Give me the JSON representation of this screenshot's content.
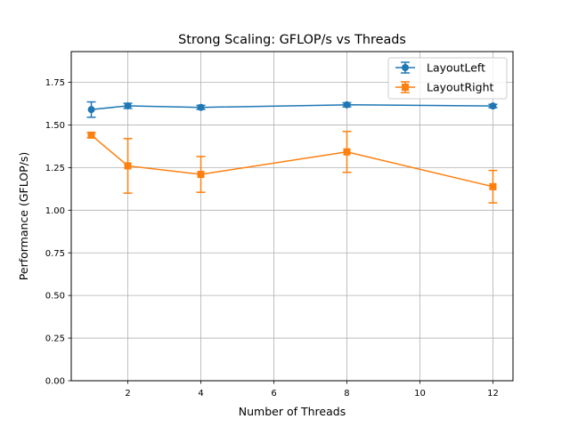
{
  "chart_data": {
    "type": "line",
    "title": "Strong Scaling: GFLOP/s vs Threads",
    "xlabel": "Number of Threads",
    "ylabel": "Performance (GFLOP/s)",
    "xlim": [
      0.45,
      12.55
    ],
    "ylim": [
      0,
      1.93
    ],
    "xticks": [
      2,
      4,
      6,
      8,
      10,
      12
    ],
    "xtick_labels": [
      "2",
      "4",
      "6",
      "8",
      "10",
      "12"
    ],
    "yticks": [
      0,
      0.25,
      0.5,
      0.75,
      1.0,
      1.25,
      1.5,
      1.75
    ],
    "ytick_labels": [
      "0.00",
      "0.25",
      "0.50",
      "0.75",
      "1.00",
      "1.25",
      "1.50",
      "1.75"
    ],
    "grid": true,
    "legend_position": "top-right",
    "x": [
      1,
      2,
      4,
      8,
      12
    ],
    "series": [
      {
        "name": "LayoutLeft",
        "color": "#1f77b4",
        "marker": "circle",
        "values": [
          1.59,
          1.612,
          1.603,
          1.618,
          1.611
        ],
        "errors": [
          0.045,
          0.015,
          0.012,
          0.012,
          0.01
        ]
      },
      {
        "name": "LayoutRight",
        "color": "#ff7f0e",
        "marker": "square",
        "values": [
          1.44,
          1.26,
          1.21,
          1.342,
          1.138
        ],
        "errors": [
          0.015,
          0.16,
          0.105,
          0.12,
          0.095
        ]
      }
    ]
  }
}
